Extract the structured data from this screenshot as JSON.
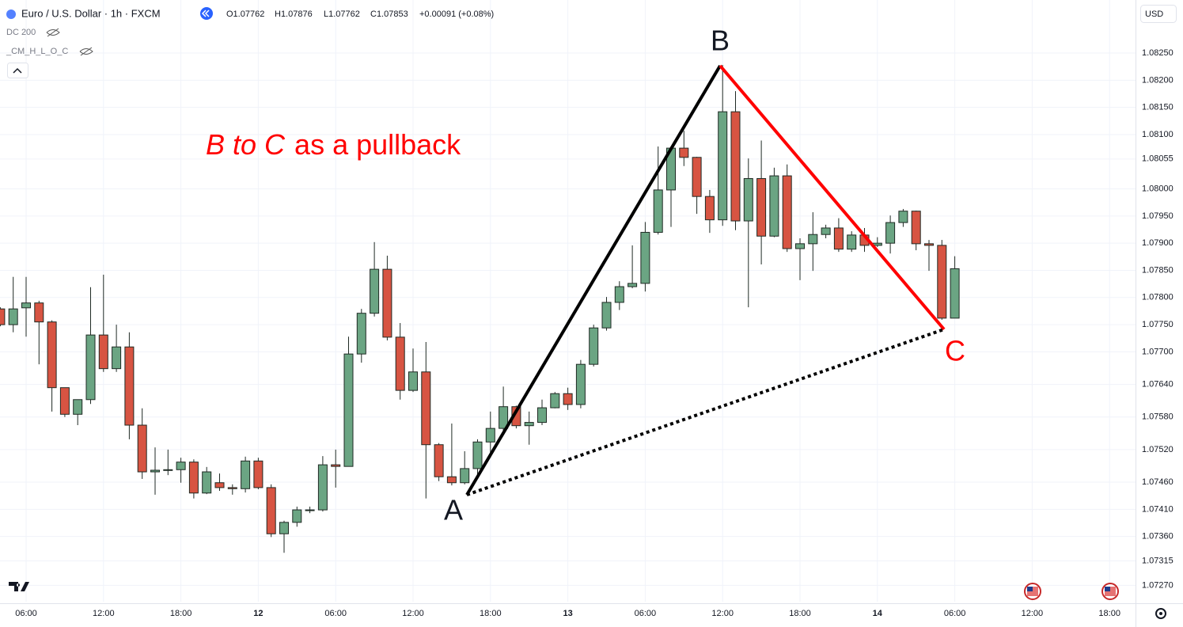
{
  "header": {
    "symbol": "Euro / U.S. Dollar · 1h · FXCM",
    "open": "O1.07762",
    "high": "H1.07876",
    "low": "L1.07762",
    "close": "C1.07853",
    "change": "+0.00091 (+0.08%)",
    "currency": "USD",
    "indicators": [
      "DC 200",
      "_CM_H_L_O_C"
    ]
  },
  "annotations": {
    "headline_em": "B to C",
    "headline": "as a pullback",
    "point_a": "A",
    "point_b": "B",
    "point_c": "C"
  },
  "chart_data": {
    "type": "candlestick",
    "categories": [
      null,
      null,
      "06:00",
      null,
      null,
      null,
      null,
      null,
      "12:00",
      null,
      null,
      null,
      null,
      null,
      "18:00",
      null,
      null,
      null,
      null,
      null,
      "12",
      null,
      null,
      null,
      null,
      null,
      "06:00",
      null,
      null,
      null,
      null,
      null,
      "12:00",
      null,
      null,
      null,
      null,
      null,
      "18:00",
      null,
      null,
      null,
      null,
      null,
      "13",
      null,
      null,
      null,
      null,
      null,
      "06:00",
      null,
      null,
      null,
      null,
      null,
      "12:00",
      null,
      null,
      null,
      null,
      null,
      "18:00",
      null,
      null,
      null,
      null,
      null,
      "14",
      null,
      null,
      null,
      null,
      null,
      "06:00",
      null,
      null,
      null,
      null,
      null,
      "12:00",
      null,
      null,
      null,
      null,
      null,
      "18:00",
      null,
      null
    ],
    "open": [
      1.07779,
      1.0775,
      1.07781,
      1.0779,
      1.07755,
      1.07634,
      1.07585,
      1.07612,
      1.07731,
      1.07669,
      1.07709,
      1.07565,
      1.07479,
      1.07482,
      1.07483,
      1.07497,
      1.0744,
      1.07459,
      1.0745,
      1.07448,
      1.07499,
      1.0745,
      1.07365,
      1.07386,
      1.07408,
      1.07409,
      1.07492,
      1.07489,
      1.07696,
      1.07771,
      1.07852,
      1.07727,
      1.07629,
      1.07663,
      1.07529,
      1.0747,
      1.07459,
      1.07485,
      1.07534,
      1.07559,
      1.07599,
      1.07564,
      1.0757,
      1.07597,
      1.07623,
      1.07603,
      1.07677,
      1.07744,
      1.07791,
      1.0782,
      1.07826,
      1.0792,
      1.07998,
      1.08075,
      1.08058,
      1.07986,
      1.07943,
      1.08142,
      1.07941,
      1.08019,
      1.07913,
      1.08024,
      1.0789,
      1.07899,
      1.07916,
      1.07928,
      1.07889,
      1.07915,
      1.07896,
      1.079,
      1.07938,
      1.07959,
      1.07899,
      1.07896,
      1.07762,
      null,
      null,
      null,
      null,
      null,
      null,
      null,
      null,
      null,
      null,
      null,
      null,
      null,
      null
    ],
    "high": [
      1.07782,
      1.07838,
      1.07838,
      1.07794,
      1.07758,
      1.07634,
      1.07612,
      1.07819,
      1.07842,
      1.0775,
      1.07736,
      1.07596,
      1.07524,
      1.0752,
      1.07505,
      1.07502,
      1.07488,
      1.07476,
      1.07456,
      1.07507,
      1.07505,
      1.07456,
      1.07389,
      1.07415,
      1.07415,
      1.07508,
      1.0752,
      1.07728,
      1.07779,
      1.07902,
      1.07877,
      1.07753,
      1.07706,
      1.07718,
      1.07532,
      1.07568,
      1.07517,
      1.07539,
      1.0759,
      1.07636,
      1.07601,
      1.0759,
      1.07612,
      1.07626,
      1.07634,
      1.07685,
      1.0775,
      1.07801,
      1.0783,
      1.07896,
      1.07939,
      1.08078,
      1.08078,
      1.08107,
      1.08059,
      1.07998,
      1.08228,
      1.0818,
      1.08056,
      1.08089,
      1.08039,
      1.08045,
      1.07909,
      1.07957,
      1.07934,
      1.07946,
      1.07922,
      1.07928,
      1.07911,
      1.07951,
      1.07963,
      1.0796,
      1.07906,
      1.07906,
      1.07876,
      null,
      null,
      null,
      null,
      null,
      null,
      null,
      null,
      null,
      null,
      null,
      null,
      null,
      null
    ],
    "low": [
      1.07747,
      1.07736,
      1.07728,
      1.07677,
      1.0759,
      1.0758,
      1.07565,
      1.07604,
      1.07663,
      1.07663,
      1.07539,
      1.07466,
      1.07437,
      1.07473,
      1.07459,
      1.0743,
      1.07438,
      1.07444,
      1.07437,
      1.07441,
      1.07447,
      1.07359,
      1.0733,
      1.07378,
      1.07403,
      1.07406,
      1.0745,
      1.07489,
      1.0768,
      1.07765,
      1.07721,
      1.07612,
      1.07626,
      1.0743,
      1.07462,
      1.07454,
      1.07456,
      1.07466,
      1.07505,
      1.07553,
      1.07559,
      1.07529,
      1.07565,
      1.07596,
      1.07593,
      1.07596,
      1.07673,
      1.07739,
      1.07777,
      1.07817,
      1.07811,
      1.07916,
      1.0793,
      1.08042,
      1.07954,
      1.07919,
      1.07932,
      1.07924,
      1.07782,
      1.07861,
      1.07911,
      1.07884,
      1.07832,
      1.07849,
      1.07909,
      1.07884,
      1.07884,
      1.07884,
      1.07893,
      1.07881,
      1.0793,
      1.07887,
      1.07849,
      1.07759,
      1.07762,
      null,
      null,
      null,
      null,
      null,
      null,
      null,
      null,
      null,
      null,
      null,
      null,
      null,
      null
    ],
    "close": [
      1.0775,
      1.07779,
      1.0779,
      1.07755,
      1.07634,
      1.07585,
      1.07612,
      1.07731,
      1.07669,
      1.07709,
      1.07565,
      1.07479,
      1.07482,
      1.07483,
      1.07497,
      1.0744,
      1.07479,
      1.0745,
      1.07448,
      1.07499,
      1.0745,
      1.07365,
      1.07386,
      1.07409,
      1.07409,
      1.07492,
      1.07489,
      1.07696,
      1.07771,
      1.07852,
      1.07727,
      1.07629,
      1.07663,
      1.07529,
      1.0747,
      1.07459,
      1.07485,
      1.07534,
      1.07559,
      1.07599,
      1.07564,
      1.0757,
      1.07597,
      1.07623,
      1.07603,
      1.07677,
      1.07744,
      1.07791,
      1.0782,
      1.07826,
      1.0792,
      1.07998,
      1.08075,
      1.08058,
      1.07986,
      1.07943,
      1.08142,
      1.07941,
      1.08019,
      1.07913,
      1.08024,
      1.0789,
      1.07899,
      1.07916,
      1.07928,
      1.07889,
      1.07915,
      1.07896,
      1.079,
      1.07938,
      1.07959,
      1.07899,
      1.07896,
      1.07762,
      1.07853,
      null,
      null,
      null,
      null,
      null,
      null,
      null,
      null,
      null,
      null,
      null,
      null,
      null,
      null
    ],
    "up_color": "#6ba583",
    "down_color": "#d75442",
    "wick_color": "#1f2a24",
    "ylim": [
      1.0724,
      1.08304
    ],
    "yticks": [
      {
        "value": 1.0825,
        "label": "1.08250"
      },
      {
        "value": 1.082,
        "label": "1.08200"
      },
      {
        "value": 1.0815,
        "label": "1.08150"
      },
      {
        "value": 1.081,
        "label": "1.08100"
      },
      {
        "value": 1.08055,
        "label": "1.08055"
      },
      {
        "value": 1.08,
        "label": "1.08000"
      },
      {
        "value": 1.0795,
        "label": "1.07950"
      },
      {
        "value": 1.079,
        "label": "1.07900"
      },
      {
        "value": 1.0785,
        "label": "1.07850"
      },
      {
        "value": 1.078,
        "label": "1.07800"
      },
      {
        "value": 1.0775,
        "label": "1.07750"
      },
      {
        "value": 1.077,
        "label": "1.07700"
      },
      {
        "value": 1.0764,
        "label": "1.07640"
      },
      {
        "value": 1.0758,
        "label": "1.07580"
      },
      {
        "value": 1.0752,
        "label": "1.07520"
      },
      {
        "value": 1.0746,
        "label": "1.07460"
      },
      {
        "value": 1.0741,
        "label": "1.07410"
      },
      {
        "value": 1.0736,
        "label": "1.07360"
      },
      {
        "value": 1.07315,
        "label": "1.07315"
      },
      {
        "value": 1.0727,
        "label": "1.07270"
      }
    ],
    "grid": true
  }
}
